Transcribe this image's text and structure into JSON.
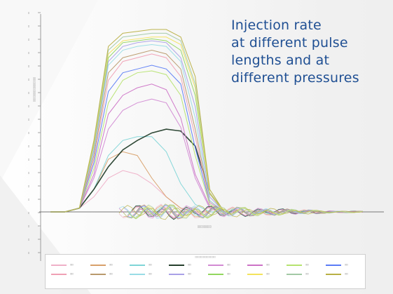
{
  "caption": {
    "lines": [
      "Injection rate",
      "at different pulse",
      "lengths and at",
      "different pressures"
    ]
  },
  "chart_data": {
    "type": "line",
    "title": "",
    "xlabel": "",
    "ylabel": "",
    "grid": false,
    "legend_placement": "bottom",
    "series": [
      {
        "color": "#efb0c8",
        "values": [
          0,
          0.0,
          0.02,
          0.08,
          0.18,
          0.22,
          0.2,
          0.15,
          0.08,
          0.02,
          0.0,
          0.0,
          0.0
        ]
      },
      {
        "color": "#d8a06a",
        "values": [
          0,
          0.0,
          0.02,
          0.12,
          0.28,
          0.32,
          0.3,
          0.18,
          0.08,
          0.02,
          0.0,
          0.0,
          0.0
        ]
      },
      {
        "color": "#7fd5d7",
        "values": [
          0,
          0.0,
          0.02,
          0.12,
          0.3,
          0.38,
          0.4,
          0.4,
          0.32,
          0.15,
          0.04,
          0.0,
          0.0
        ]
      },
      {
        "color": "#253f2c",
        "values": [
          0,
          0.0,
          0.02,
          0.12,
          0.24,
          0.33,
          0.38,
          0.42,
          0.44,
          0.43,
          0.35,
          0.1,
          0.0
        ]
      },
      {
        "color": "#d28ad3",
        "values": [
          0,
          0.0,
          0.02,
          0.18,
          0.44,
          0.54,
          0.58,
          0.6,
          0.58,
          0.45,
          0.18,
          0.02,
          0.0
        ]
      },
      {
        "color": "#cc72c6",
        "values": [
          0,
          0.0,
          0.02,
          0.2,
          0.52,
          0.62,
          0.66,
          0.68,
          0.65,
          0.5,
          0.2,
          0.03,
          0.0
        ]
      },
      {
        "color": "#b6e36f",
        "values": [
          0,
          0.0,
          0.02,
          0.23,
          0.58,
          0.7,
          0.74,
          0.75,
          0.73,
          0.62,
          0.3,
          0.04,
          0.0
        ]
      },
      {
        "color": "#5b7cf6",
        "values": [
          0,
          0.0,
          0.02,
          0.26,
          0.64,
          0.74,
          0.76,
          0.78,
          0.76,
          0.68,
          0.34,
          0.05,
          0.0
        ]
      },
      {
        "color": "#f0a0b5",
        "values": [
          0,
          0.0,
          0.02,
          0.28,
          0.7,
          0.8,
          0.82,
          0.84,
          0.82,
          0.72,
          0.4,
          0.05,
          0.0
        ]
      },
      {
        "color": "#b99a6c",
        "values": [
          0,
          0.0,
          0.02,
          0.3,
          0.74,
          0.82,
          0.84,
          0.86,
          0.84,
          0.76,
          0.44,
          0.06,
          0.0
        ]
      },
      {
        "color": "#99dce6",
        "values": [
          0,
          0.0,
          0.02,
          0.32,
          0.78,
          0.86,
          0.88,
          0.89,
          0.88,
          0.8,
          0.5,
          0.06,
          0.0
        ]
      },
      {
        "color": "#a9a0e7",
        "values": [
          0,
          0.0,
          0.02,
          0.33,
          0.8,
          0.88,
          0.9,
          0.91,
          0.9,
          0.82,
          0.56,
          0.08,
          0.0
        ]
      },
      {
        "color": "#92d65f",
        "values": [
          0,
          0.0,
          0.02,
          0.35,
          0.82,
          0.9,
          0.91,
          0.92,
          0.91,
          0.86,
          0.62,
          0.1,
          0.0
        ]
      },
      {
        "color": "#f3e35c",
        "values": [
          0,
          0.0,
          0.02,
          0.36,
          0.84,
          0.91,
          0.92,
          0.93,
          0.93,
          0.89,
          0.66,
          0.1,
          0.0
        ]
      },
      {
        "color": "#a2c9a5",
        "values": [
          0,
          0.0,
          0.02,
          0.37,
          0.86,
          0.93,
          0.94,
          0.95,
          0.95,
          0.91,
          0.68,
          0.12,
          0.0
        ]
      },
      {
        "color": "#b9b045",
        "values": [
          0,
          0.0,
          0.02,
          0.38,
          0.88,
          0.95,
          0.96,
          0.97,
          0.97,
          0.93,
          0.72,
          0.12,
          0.0
        ]
      }
    ]
  }
}
